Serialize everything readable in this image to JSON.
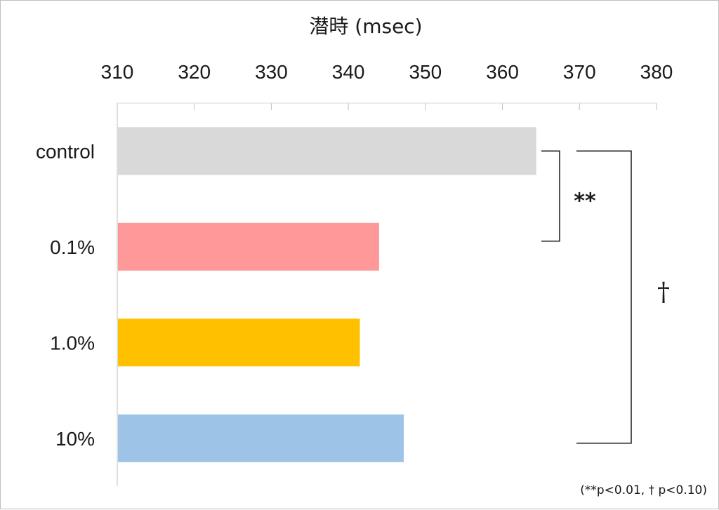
{
  "chart_data": {
    "type": "bar",
    "orientation": "horizontal",
    "title": "潜時 (msec)",
    "xlim": [
      310,
      380
    ],
    "ticks": [
      310,
      320,
      330,
      340,
      350,
      360,
      370,
      380
    ],
    "categories": [
      "control",
      "0.1%",
      "1.0%",
      "10%"
    ],
    "values": [
      364.3,
      343.9,
      341.4,
      347.1
    ],
    "colors": [
      "#d9d9d9",
      "#ff9999",
      "#ffc000",
      "#9dc3e6"
    ],
    "axis_position": "top",
    "grid": false,
    "annotations": [
      {
        "type": "bracket",
        "from": "control",
        "to": "0.1%",
        "label": "**"
      },
      {
        "type": "bracket",
        "from": "control",
        "to": "10%",
        "label": "†"
      }
    ],
    "footnote": "(**p<0.01, † p<0.10)"
  }
}
